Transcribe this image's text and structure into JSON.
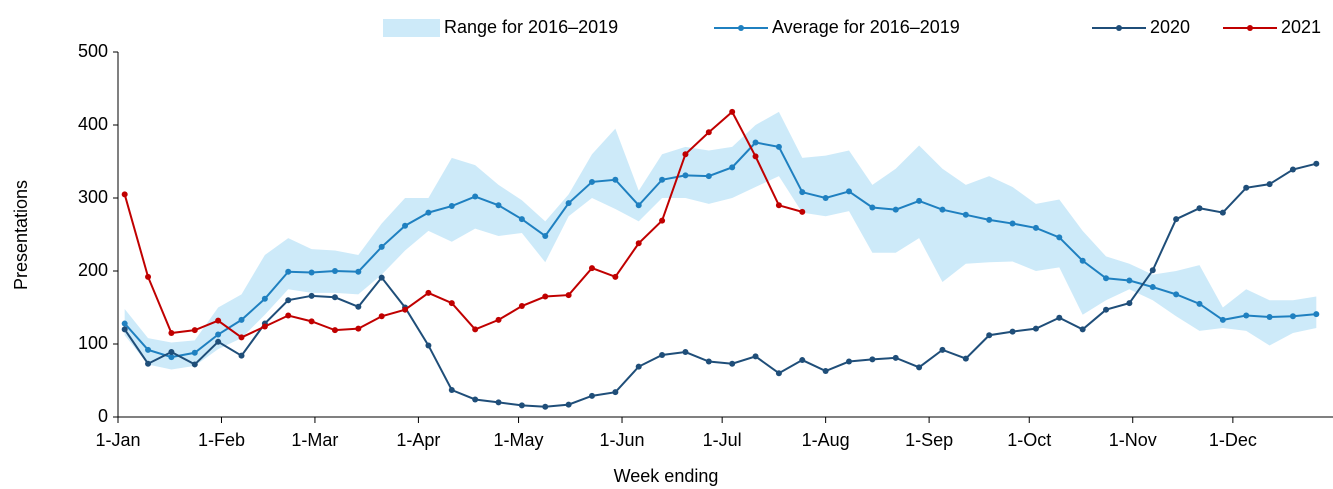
{
  "chart_data": {
    "type": "line",
    "x_label": "Week ending",
    "y_label": "Presentations",
    "x": [
      2,
      9,
      16,
      23,
      30,
      37,
      44,
      51,
      58,
      65,
      72,
      79,
      86,
      93,
      100,
      107,
      114,
      121,
      128,
      135,
      142,
      149,
      156,
      163,
      170,
      177,
      184,
      191,
      198,
      205,
      212,
      219,
      226,
      233,
      240,
      247,
      254,
      261,
      268,
      275,
      282,
      289,
      296,
      303,
      310,
      317,
      324,
      331,
      338,
      345,
      352,
      359
    ],
    "xlim": [
      0,
      364
    ],
    "xticks": [
      {
        "value": 0,
        "label": "1-Jan"
      },
      {
        "value": 31,
        "label": "1-Feb"
      },
      {
        "value": 59,
        "label": "1-Mar"
      },
      {
        "value": 90,
        "label": "1-Apr"
      },
      {
        "value": 120,
        "label": "1-May"
      },
      {
        "value": 151,
        "label": "1-Jun"
      },
      {
        "value": 181,
        "label": "1-Jul"
      },
      {
        "value": 212,
        "label": "1-Aug"
      },
      {
        "value": 243,
        "label": "1-Sep"
      },
      {
        "value": 273,
        "label": "1-Oct"
      },
      {
        "value": 304,
        "label": "1-Nov"
      },
      {
        "value": 334,
        "label": "1-Dec"
      }
    ],
    "ylim": [
      0,
      500
    ],
    "yticks": [
      0,
      100,
      200,
      300,
      400,
      500
    ],
    "grid": false,
    "band": {
      "name": "Range for 2016–2019",
      "color": "#cdeaf9",
      "upper": [
        148,
        108,
        102,
        105,
        150,
        168,
        222,
        245,
        230,
        228,
        222,
        265,
        300,
        300,
        355,
        345,
        318,
        297,
        268,
        305,
        360,
        395,
        310,
        360,
        370,
        365,
        370,
        400,
        418,
        355,
        358,
        365,
        318,
        340,
        372,
        340,
        318,
        330,
        315,
        292,
        298,
        255,
        220,
        210,
        195,
        200,
        208,
        150,
        175,
        160,
        160,
        165
      ],
      "lower": [
        112,
        72,
        65,
        70,
        93,
        108,
        140,
        175,
        170,
        170,
        168,
        195,
        228,
        255,
        240,
        258,
        248,
        252,
        212,
        275,
        300,
        285,
        268,
        300,
        300,
        292,
        300,
        315,
        330,
        280,
        275,
        282,
        225,
        225,
        245,
        185,
        210,
        212,
        213,
        200,
        205,
        140,
        160,
        175,
        160,
        138,
        118,
        122,
        118,
        98,
        115,
        122
      ]
    },
    "series": [
      {
        "name": "Average for 2016–2019",
        "color": "#1f80c0",
        "values": [
          128,
          92,
          82,
          88,
          113,
          133,
          162,
          199,
          198,
          200,
          199,
          233,
          262,
          280,
          289,
          302,
          290,
          271,
          248,
          293,
          322,
          325,
          290,
          325,
          331,
          330,
          342,
          376,
          370,
          308,
          300,
          309,
          287,
          284,
          296,
          284,
          277,
          270,
          265,
          259,
          246,
          214,
          190,
          187,
          178,
          168,
          155,
          133,
          139,
          137,
          138,
          141
        ]
      },
      {
        "name": "2020",
        "color": "#1f4e79",
        "values": [
          120,
          73,
          89,
          72,
          103,
          84,
          128,
          160,
          166,
          164,
          151,
          191,
          150,
          98,
          37,
          24,
          20,
          16,
          14,
          17,
          29,
          34,
          69,
          85,
          89,
          76,
          73,
          83,
          60,
          78,
          63,
          76,
          79,
          81,
          68,
          92,
          80,
          112,
          117,
          121,
          136,
          120,
          147,
          156,
          201,
          271,
          286,
          280,
          314,
          319,
          339,
          347
        ]
      },
      {
        "name": "2021",
        "color": "#c00000",
        "values": [
          305,
          192,
          115,
          119,
          132,
          109,
          124,
          139,
          131,
          119,
          121,
          138,
          147,
          170,
          156,
          120,
          133,
          152,
          165,
          167,
          204,
          192,
          238,
          269,
          360,
          390,
          418,
          357,
          290,
          281,
          null,
          null,
          null,
          null,
          null,
          null,
          null,
          null,
          null,
          null,
          null,
          null,
          null,
          null,
          null,
          null,
          null,
          null,
          null,
          null,
          null,
          null
        ]
      }
    ]
  }
}
